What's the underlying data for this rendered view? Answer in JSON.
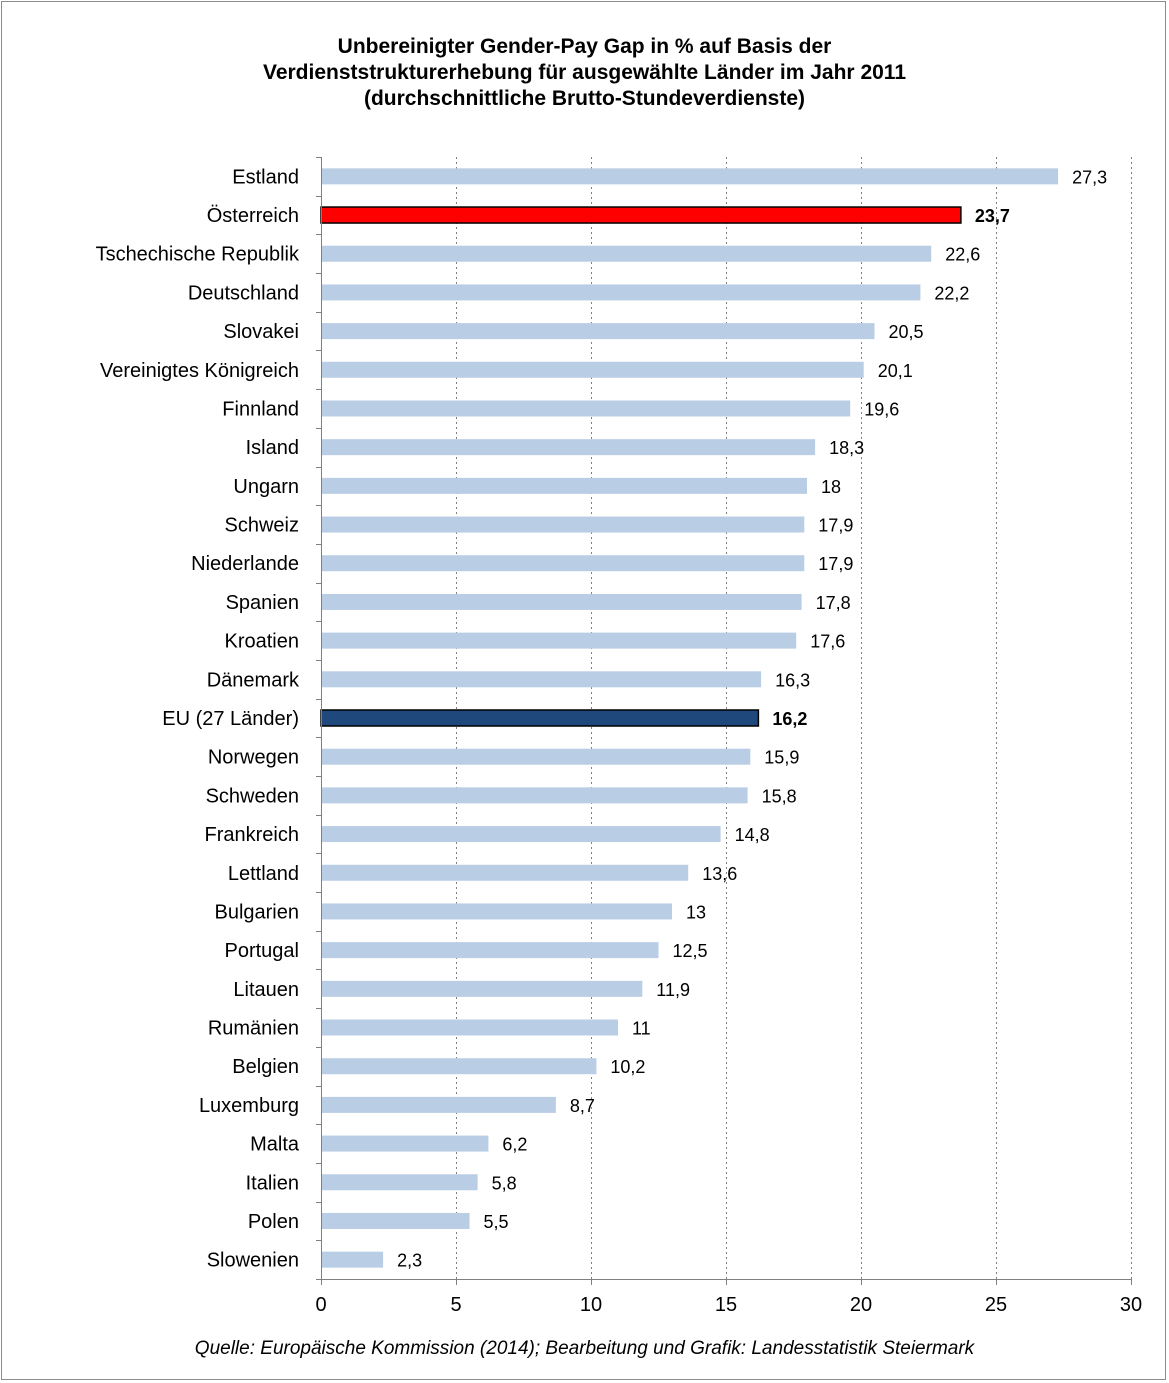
{
  "chart_data": {
    "type": "bar",
    "orientation": "horizontal",
    "title_lines": [
      "Unbereinigter Gender-Pay Gap in % auf Basis der",
      "Verdienststrukturerhebung für ausgewählte Länder im Jahr 2011",
      "(durchschnittliche Brutto-Stundeverdienste)"
    ],
    "source": "Quelle: Europäische Kommission (2014); Bearbeitung und Grafik: Landesstatistik Steiermark",
    "xlim": [
      0,
      30
    ],
    "xticks": [
      "0",
      "5",
      "10",
      "15",
      "20",
      "25",
      "30"
    ],
    "xtick_values": [
      0,
      5,
      10,
      15,
      20,
      25,
      30
    ],
    "grid": "vertical dotted",
    "legend": "none",
    "colors": {
      "default": "#b9cde5",
      "highlight_austria": "#ff0000",
      "highlight_eu": "#1f497d"
    },
    "bars": [
      {
        "label": "Estland",
        "value": 27.3,
        "value_label": "27,3",
        "highlight": "none"
      },
      {
        "label": "Österreich",
        "value": 23.7,
        "value_label": "23,7",
        "highlight": "austria"
      },
      {
        "label": "Tschechische Republik",
        "value": 22.6,
        "value_label": "22,6",
        "highlight": "none"
      },
      {
        "label": "Deutschland",
        "value": 22.2,
        "value_label": "22,2",
        "highlight": "none"
      },
      {
        "label": "Slovakei",
        "value": 20.5,
        "value_label": "20,5",
        "highlight": "none"
      },
      {
        "label": "Vereinigtes Königreich",
        "value": 20.1,
        "value_label": "20,1",
        "highlight": "none"
      },
      {
        "label": "Finnland",
        "value": 19.6,
        "value_label": "19,6",
        "highlight": "none"
      },
      {
        "label": "Island",
        "value": 18.3,
        "value_label": "18,3",
        "highlight": "none"
      },
      {
        "label": "Ungarn",
        "value": 18.0,
        "value_label": "18",
        "highlight": "none"
      },
      {
        "label": "Schweiz",
        "value": 17.9,
        "value_label": "17,9",
        "highlight": "none"
      },
      {
        "label": "Niederlande",
        "value": 17.9,
        "value_label": "17,9",
        "highlight": "none"
      },
      {
        "label": "Spanien",
        "value": 17.8,
        "value_label": "17,8",
        "highlight": "none"
      },
      {
        "label": "Kroatien",
        "value": 17.6,
        "value_label": "17,6",
        "highlight": "none"
      },
      {
        "label": "Dänemark",
        "value": 16.3,
        "value_label": "16,3",
        "highlight": "none"
      },
      {
        "label": "EU (27 Länder)",
        "value": 16.2,
        "value_label": "16,2",
        "highlight": "eu"
      },
      {
        "label": "Norwegen",
        "value": 15.9,
        "value_label": "15,9",
        "highlight": "none"
      },
      {
        "label": "Schweden",
        "value": 15.8,
        "value_label": "15,8",
        "highlight": "none"
      },
      {
        "label": "Frankreich",
        "value": 14.8,
        "value_label": "14,8",
        "highlight": "none"
      },
      {
        "label": "Lettland",
        "value": 13.6,
        "value_label": "13,6",
        "highlight": "none"
      },
      {
        "label": "Bulgarien",
        "value": 13.0,
        "value_label": "13",
        "highlight": "none"
      },
      {
        "label": "Portugal",
        "value": 12.5,
        "value_label": "12,5",
        "highlight": "none"
      },
      {
        "label": "Litauen",
        "value": 11.9,
        "value_label": "11,9",
        "highlight": "none"
      },
      {
        "label": "Rumänien",
        "value": 11.0,
        "value_label": "11",
        "highlight": "none"
      },
      {
        "label": "Belgien",
        "value": 10.2,
        "value_label": "10,2",
        "highlight": "none"
      },
      {
        "label": "Luxemburg",
        "value": 8.7,
        "value_label": "8,7",
        "highlight": "none"
      },
      {
        "label": "Malta",
        "value": 6.2,
        "value_label": "6,2",
        "highlight": "none"
      },
      {
        "label": "Italien",
        "value": 5.8,
        "value_label": "5,8",
        "highlight": "none"
      },
      {
        "label": "Polen",
        "value": 5.5,
        "value_label": "5,5",
        "highlight": "none"
      },
      {
        "label": "Slowenien",
        "value": 2.3,
        "value_label": "2,3",
        "highlight": "none"
      }
    ]
  }
}
